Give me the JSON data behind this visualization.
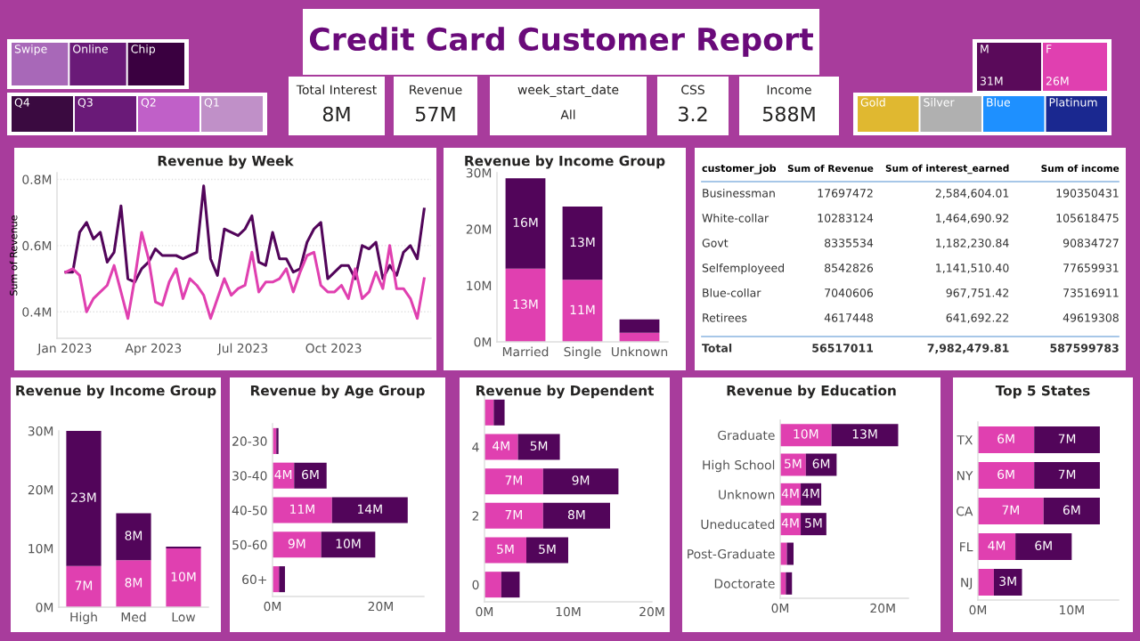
{
  "chart_data": [
    {
      "type": "other",
      "title": "Credit Card Customer Report"
    },
    {
      "type": "other",
      "categories": [
        "Swipe",
        "Online",
        "Chip"
      ],
      "colors": [
        "#a868b8",
        "#6a1a78",
        "#3a0040"
      ]
    },
    {
      "type": "other",
      "categories": [
        "Q4",
        "Q3",
        "Q2",
        "Q1"
      ],
      "colors": [
        "#3a0a40",
        "#6a1a78",
        "#c060c8",
        "#c090c8"
      ]
    },
    {
      "type": "other",
      "title": "Total Interest",
      "annotations": [
        "8M"
      ]
    },
    {
      "type": "other",
      "title": "Revenue",
      "annotations": [
        "57M"
      ]
    },
    {
      "type": "other",
      "title": "week_start_date",
      "annotations": [
        "All"
      ]
    },
    {
      "type": "other",
      "title": "CSS",
      "annotations": [
        "3.2"
      ]
    },
    {
      "type": "other",
      "title": "Income",
      "annotations": [
        "588M"
      ]
    },
    {
      "type": "other",
      "categories": [
        "M",
        "F"
      ],
      "colors": [
        "#5a0a5a",
        "#e040b0"
      ],
      "value_labels": [
        "31M",
        "26M"
      ]
    },
    {
      "type": "other",
      "categories": [
        "Gold",
        "Silver",
        "Blue",
        "Platinum"
      ],
      "colors": [
        "#e0b830",
        "#b0b0b0",
        "#1e90ff",
        "#1a2890"
      ]
    },
    {
      "type": "line",
      "title": "Revenue by Week",
      "ylabel": "Sum of Revenue",
      "grid": "y",
      "x": [
        "2023-01-02",
        "2023-01-09",
        "2023-01-16",
        "2023-01-23",
        "2023-01-30",
        "2023-02-06",
        "2023-02-13",
        "2023-02-20",
        "2023-02-27",
        "2023-03-06",
        "2023-03-13",
        "2023-03-20",
        "2023-03-27",
        "2023-04-03",
        "2023-04-10",
        "2023-04-17",
        "2023-04-24",
        "2023-05-01",
        "2023-05-08",
        "2023-05-15",
        "2023-05-22",
        "2023-05-29",
        "2023-06-05",
        "2023-06-12",
        "2023-06-19",
        "2023-06-26",
        "2023-07-03",
        "2023-07-10",
        "2023-07-17",
        "2023-07-24",
        "2023-07-31",
        "2023-08-07",
        "2023-08-14",
        "2023-08-21",
        "2023-08-28",
        "2023-09-04",
        "2023-09-11",
        "2023-09-18",
        "2023-09-25",
        "2023-10-02",
        "2023-10-09",
        "2023-10-16",
        "2023-10-23",
        "2023-10-30",
        "2023-11-06",
        "2023-11-13",
        "2023-11-20",
        "2023-11-27",
        "2023-12-04",
        "2023-12-11",
        "2023-12-18",
        "2023-12-25",
        "2024-01-01"
      ],
      "xlim": [
        "2022-12-24",
        "2024-01-08"
      ],
      "xticks": [
        {
          "value": "2023-01-01",
          "label": "Jan 2023"
        },
        {
          "value": "2023-04-01",
          "label": "Apr 2023"
        },
        {
          "value": "2023-07-01",
          "label": "Jul 2023"
        },
        {
          "value": "2023-10-01",
          "label": "Oct 2023"
        }
      ],
      "ylim": [
        0.32,
        0.82
      ],
      "yticks": [
        {
          "value": 0.4,
          "label": "0.4M"
        },
        {
          "value": 0.6,
          "label": "0.6M"
        },
        {
          "value": 0.8,
          "label": "0.8M"
        }
      ],
      "series": [
        {
          "color": "#52055a",
          "values": [
            0.52,
            0.52,
            0.64,
            0.67,
            0.62,
            0.64,
            0.55,
            0.58,
            0.72,
            0.5,
            0.49,
            0.53,
            0.55,
            0.59,
            0.57,
            0.57,
            0.57,
            0.56,
            0.57,
            0.58,
            0.78,
            0.56,
            0.51,
            0.65,
            0.64,
            0.63,
            0.65,
            0.69,
            0.55,
            0.54,
            0.64,
            0.56,
            0.56,
            0.52,
            0.53,
            0.61,
            0.65,
            0.67,
            0.5,
            0.52,
            0.54,
            0.54,
            0.5,
            0.6,
            0.59,
            0.61,
            0.5,
            0.54,
            0.51,
            0.58,
            0.6,
            0.56,
            0.71
          ]
        },
        {
          "color": "#e040b0",
          "values": [
            0.52,
            0.53,
            0.51,
            0.4,
            0.44,
            0.46,
            0.48,
            0.54,
            0.46,
            0.38,
            0.5,
            0.64,
            0.56,
            0.43,
            0.42,
            0.49,
            0.53,
            0.44,
            0.5,
            0.48,
            0.45,
            0.38,
            0.44,
            0.5,
            0.45,
            0.47,
            0.48,
            0.58,
            0.46,
            0.49,
            0.49,
            0.5,
            0.53,
            0.46,
            0.52,
            0.57,
            0.58,
            0.48,
            0.46,
            0.46,
            0.48,
            0.44,
            0.53,
            0.44,
            0.46,
            0.52,
            0.47,
            0.6,
            0.47,
            0.47,
            0.44,
            0.38,
            0.5
          ]
        }
      ]
    },
    {
      "type": "bar",
      "title": "Revenue by Income Group",
      "stacked": true,
      "categories": [
        "Married",
        "Single",
        "Unknown"
      ],
      "ylim": [
        0,
        30
      ],
      "yticks": [
        {
          "value": 0,
          "label": "0M"
        },
        {
          "value": 10,
          "label": "10M"
        },
        {
          "value": 20,
          "label": "20M"
        },
        {
          "value": 30,
          "label": "30M"
        }
      ],
      "series": [
        {
          "color": "#e040b0",
          "values": [
            13,
            11,
            1.6
          ],
          "value_labels": [
            "13M",
            "11M",
            null
          ]
        },
        {
          "color": "#52055a",
          "values": [
            16,
            13,
            2.4
          ],
          "value_labels": [
            "16M",
            "13M",
            null
          ]
        }
      ]
    },
    {
      "type": "other",
      "ylabel": "customer_job",
      "data_labels": true,
      "categories": [
        "Businessman",
        "White-collar",
        "Govt",
        "Selfemployeed",
        "Blue-collar",
        "Retirees",
        "Total"
      ],
      "series": [
        {
          "name": "Sum of Revenue",
          "values": [
            17697472,
            10283124,
            8335534,
            8542826,
            7040606,
            4617448,
            56517011
          ]
        },
        {
          "name": "Sum of interest_earned",
          "values": [
            2584604.01,
            1464690.92,
            1182230.84,
            1141510.4,
            967751.42,
            641692.22,
            7982479.81
          ],
          "value_labels": [
            "2,584,604.01",
            "1,464,690.92",
            "1,182,230.84",
            "1,141,510.40",
            "967,751.42",
            "641,692.22",
            "7,982,479.81"
          ]
        },
        {
          "name": "Sum of income",
          "values": [
            190350431,
            105618475,
            90834727,
            77659931,
            73516911,
            49619308,
            587599783
          ]
        }
      ]
    },
    {
      "type": "bar",
      "title": "Revenue by Income Group",
      "stacked": true,
      "categories": [
        "High",
        "Med",
        "Low"
      ],
      "ylim": [
        0,
        30
      ],
      "yticks": [
        {
          "value": 0,
          "label": "0M"
        },
        {
          "value": 10,
          "label": "10M"
        },
        {
          "value": 20,
          "label": "20M"
        },
        {
          "value": 30,
          "label": "30M"
        }
      ],
      "series": [
        {
          "color": "#e040b0",
          "values": [
            7,
            8,
            10
          ],
          "value_labels": [
            "7M",
            "8M",
            "10M"
          ]
        },
        {
          "color": "#52055a",
          "values": [
            23,
            8,
            0.3
          ],
          "value_labels": [
            "23M",
            "8M",
            null
          ]
        }
      ]
    },
    {
      "type": "bar",
      "title": "Revenue by Age Group",
      "stacked": true,
      "orientation": "horizontal",
      "categories": [
        "20-30",
        "30-40",
        "40-50",
        "50-60",
        "60+"
      ],
      "xlim": [
        0,
        28
      ],
      "xticks": [
        {
          "value": 0,
          "label": "0M"
        },
        {
          "value": 20,
          "label": "20M"
        }
      ],
      "series": [
        {
          "color": "#e040b0",
          "values": [
            0.7,
            4,
            11,
            9,
            1.2
          ],
          "value_labels": [
            null,
            "4M",
            "11M",
            "9M",
            null
          ]
        },
        {
          "color": "#52055a",
          "values": [
            0.4,
            6,
            14,
            10,
            1.1
          ],
          "value_labels": [
            null,
            "6M",
            "14M",
            "10M",
            null
          ]
        }
      ]
    },
    {
      "type": "bar",
      "title": "Revenue by Dependent",
      "stacked": true,
      "orientation": "horizontal",
      "categories": [
        null,
        "4",
        null,
        "2",
        null,
        "0"
      ],
      "xlim": [
        0,
        20
      ],
      "xticks": [
        {
          "value": 0,
          "label": "0M"
        },
        {
          "value": 10,
          "label": "10M"
        },
        {
          "value": 20,
          "label": "20M"
        }
      ],
      "series": [
        {
          "color": "#e040b0",
          "values": [
            1.1,
            4,
            7,
            7,
            5,
            2
          ],
          "value_labels": [
            null,
            "4M",
            "7M",
            "7M",
            "5M",
            null
          ]
        },
        {
          "color": "#52055a",
          "values": [
            1.3,
            5,
            9,
            8,
            5,
            2.2
          ],
          "value_labels": [
            null,
            "5M",
            "9M",
            "8M",
            "5M",
            null
          ]
        }
      ]
    },
    {
      "type": "bar",
      "title": "Revenue by Education",
      "stacked": true,
      "orientation": "horizontal",
      "categories": [
        "Graduate",
        "High School",
        "Unknown",
        "Uneducated",
        "Post-Graduate",
        "Doctorate"
      ],
      "xlim": [
        0,
        25
      ],
      "xticks": [
        {
          "value": 0,
          "label": "0M"
        },
        {
          "value": 20,
          "label": "20M"
        }
      ],
      "series": [
        {
          "color": "#e040b0",
          "values": [
            10,
            5,
            4,
            4,
            1.3,
            1.1
          ],
          "value_labels": [
            "10M",
            "5M",
            "4M",
            "4M",
            null,
            null
          ]
        },
        {
          "color": "#52055a",
          "values": [
            13,
            6,
            4,
            5,
            1.3,
            1.2
          ],
          "value_labels": [
            "13M",
            "6M",
            "4M",
            "5M",
            null,
            null
          ]
        }
      ]
    },
    {
      "type": "bar",
      "title": "Top 5 States",
      "stacked": true,
      "orientation": "horizontal",
      "categories": [
        "TX",
        "NY",
        "CA",
        "FL",
        "NJ"
      ],
      "xlim": [
        0,
        15
      ],
      "xticks": [
        {
          "value": 0,
          "label": "0M"
        },
        {
          "value": 10,
          "label": "10M"
        }
      ],
      "series": [
        {
          "color": "#e040b0",
          "values": [
            6,
            6,
            7,
            4,
            1.7
          ],
          "value_labels": [
            "6M",
            "6M",
            "7M",
            "4M",
            null
          ]
        },
        {
          "color": "#52055a",
          "values": [
            7,
            7,
            6,
            6,
            3
          ],
          "value_labels": [
            "7M",
            "7M",
            "6M",
            "6M",
            "3M"
          ]
        }
      ]
    }
  ]
}
